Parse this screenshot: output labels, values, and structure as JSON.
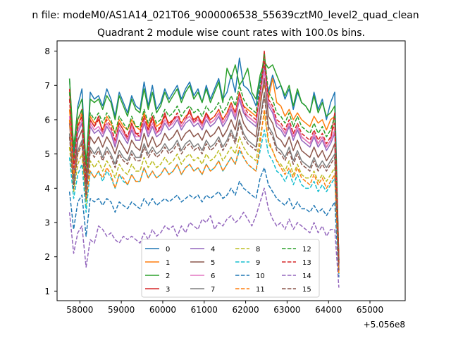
{
  "chart_data": {
    "type": "line",
    "suptitle": "n file: modeM0/AS1A14_021T06_9000006538_55639cztM0_level2_quad_clean",
    "title": "Quadrant 2 module wise count rates with 100.0s bins.",
    "xlabel": "",
    "ylabel": "",
    "x_offset_label": "+5.056e8",
    "xlim": [
      57450,
      65850
    ],
    "ylim": [
      0.72,
      8.3
    ],
    "x_ticks": [
      58000,
      59000,
      60000,
      61000,
      62000,
      63000,
      64000,
      65000
    ],
    "y_ticks": [
      1,
      2,
      3,
      4,
      5,
      6,
      7,
      8
    ],
    "legend_position": "lower-center",
    "legend_columns": 4,
    "x_start": 57750,
    "x_step": 100,
    "series": [
      {
        "name": "0",
        "color": "#1f77b4",
        "dash": "solid",
        "values": [
          7.2,
          5.0,
          6.4,
          6.9,
          4.6,
          6.8,
          6.6,
          6.7,
          6.4,
          6.9,
          6.6,
          6.1,
          6.8,
          6.5,
          6.2,
          6.7,
          6.4,
          6.3,
          7.1,
          6.4,
          7.0,
          6.3,
          6.5,
          6.9,
          6.6,
          6.8,
          7.0,
          6.6,
          6.9,
          7.1,
          6.7,
          6.9,
          6.5,
          7.0,
          6.6,
          6.9,
          7.2,
          6.6,
          6.8,
          7.3,
          6.8,
          7.8,
          7.0,
          6.9,
          6.7,
          6.4,
          7.2,
          7.4,
          6.8,
          7.3,
          6.9,
          7.0,
          6.6,
          6.9,
          6.3,
          6.8,
          6.5,
          6.4,
          6.2,
          6.8,
          6.3,
          6.6,
          6.0,
          6.5,
          6.8,
          1.9
        ]
      },
      {
        "name": "1",
        "color": "#ff7f0e",
        "dash": "solid",
        "values": [
          6.3,
          4.8,
          5.8,
          6.2,
          4.4,
          6.1,
          5.9,
          6.0,
          5.7,
          6.1,
          5.9,
          5.6,
          6.0,
          5.8,
          5.7,
          6.0,
          5.8,
          5.7,
          6.2,
          5.8,
          6.1,
          5.8,
          5.9,
          6.1,
          5.9,
          6.0,
          6.1,
          5.9,
          6.1,
          6.2,
          6.0,
          6.1,
          5.9,
          6.2,
          6.0,
          6.1,
          6.3,
          6.0,
          6.2,
          6.5,
          6.2,
          6.8,
          6.4,
          6.3,
          6.2,
          6.1,
          6.6,
          7.0,
          6.6,
          7.2,
          6.5,
          6.4,
          6.1,
          6.3,
          6.0,
          6.2,
          6.0,
          5.9,
          5.8,
          6.1,
          5.9,
          6.0,
          5.7,
          6.0,
          6.1,
          1.8
        ]
      },
      {
        "name": "2",
        "color": "#2ca02c",
        "dash": "solid",
        "values": [
          7.2,
          5.2,
          6.3,
          6.6,
          4.7,
          6.6,
          6.5,
          6.6,
          6.3,
          6.7,
          6.5,
          6.0,
          6.7,
          6.4,
          6.1,
          6.6,
          6.3,
          6.2,
          6.9,
          6.3,
          6.8,
          6.2,
          6.4,
          6.8,
          6.5,
          6.7,
          6.9,
          6.5,
          6.8,
          7.0,
          6.6,
          6.8,
          6.5,
          6.9,
          6.5,
          6.8,
          7.1,
          6.5,
          7.5,
          7.2,
          7.6,
          7.0,
          7.2,
          7.5,
          6.8,
          6.6,
          7.3,
          7.7,
          7.5,
          7.6,
          7.3,
          7.0,
          6.7,
          7.0,
          6.4,
          6.9,
          6.5,
          6.4,
          6.2,
          6.7,
          6.2,
          6.5,
          6.1,
          6.2,
          6.4,
          1.9
        ]
      },
      {
        "name": "3",
        "color": "#d62728",
        "dash": "solid",
        "values": [
          6.9,
          4.6,
          6.0,
          6.3,
          4.3,
          6.0,
          5.8,
          6.1,
          5.6,
          5.9,
          5.7,
          5.3,
          5.9,
          5.7,
          5.4,
          5.9,
          5.6,
          5.5,
          6.0,
          5.7,
          6.1,
          5.6,
          5.8,
          6.2,
          5.8,
          6.0,
          6.1,
          5.8,
          6.0,
          6.3,
          5.9,
          6.1,
          5.8,
          6.2,
          5.9,
          6.0,
          6.2,
          5.9,
          6.1,
          6.4,
          6.1,
          6.6,
          6.2,
          6.1,
          6.0,
          5.9,
          6.8,
          8.0,
          6.5,
          6.3,
          5.9,
          5.8,
          5.6,
          5.9,
          5.5,
          5.8,
          5.5,
          5.4,
          5.3,
          5.6,
          5.3,
          5.5,
          5.2,
          5.4,
          6.2,
          1.9
        ]
      },
      {
        "name": "4",
        "color": "#9467bd",
        "dash": "solid",
        "values": [
          6.0,
          4.5,
          5.6,
          5.9,
          4.2,
          5.8,
          5.6,
          5.7,
          5.5,
          5.8,
          5.6,
          5.2,
          5.7,
          5.5,
          5.3,
          5.7,
          5.4,
          5.4,
          5.9,
          5.5,
          5.8,
          5.5,
          5.6,
          5.9,
          5.7,
          5.8,
          6.0,
          5.7,
          5.9,
          6.0,
          5.8,
          5.9,
          5.7,
          6.0,
          5.8,
          5.9,
          6.1,
          5.8,
          6.0,
          6.3,
          6.0,
          6.6,
          6.2,
          6.0,
          5.9,
          5.8,
          6.8,
          7.6,
          6.4,
          6.2,
          5.8,
          5.7,
          5.5,
          5.8,
          5.4,
          5.7,
          5.4,
          5.3,
          5.2,
          5.5,
          5.2,
          5.4,
          5.1,
          5.3,
          5.6,
          1.7
        ]
      },
      {
        "name": "5",
        "color": "#8c564b",
        "dash": "solid",
        "values": [
          5.9,
          4.3,
          5.4,
          5.7,
          4.0,
          5.5,
          5.3,
          5.5,
          5.2,
          5.5,
          5.3,
          5.0,
          5.4,
          5.2,
          5.0,
          5.4,
          5.2,
          5.1,
          5.6,
          5.2,
          5.5,
          5.2,
          5.3,
          5.6,
          5.4,
          5.5,
          5.7,
          5.4,
          5.6,
          5.7,
          5.5,
          5.6,
          5.4,
          5.7,
          5.5,
          5.6,
          5.8,
          5.5,
          5.7,
          6.0,
          5.7,
          6.3,
          5.9,
          5.7,
          5.6,
          5.5,
          6.4,
          7.2,
          6.1,
          5.9,
          5.5,
          5.4,
          5.2,
          5.5,
          5.1,
          5.4,
          5.1,
          5.0,
          4.9,
          5.2,
          4.9,
          5.1,
          4.8,
          5.0,
          5.3,
          1.6
        ]
      },
      {
        "name": "6",
        "color": "#e377c2",
        "dash": "solid",
        "values": [
          6.1,
          4.6,
          5.7,
          6.0,
          4.3,
          5.9,
          5.7,
          5.8,
          5.6,
          5.9,
          5.7,
          5.3,
          5.8,
          5.6,
          5.4,
          5.8,
          5.5,
          5.5,
          6.0,
          5.6,
          5.9,
          5.6,
          5.7,
          6.0,
          5.8,
          5.9,
          6.1,
          5.8,
          6.0,
          6.1,
          5.9,
          6.0,
          5.8,
          6.1,
          5.9,
          6.0,
          6.2,
          5.9,
          6.1,
          6.4,
          6.1,
          6.7,
          6.3,
          6.1,
          6.0,
          5.9,
          6.7,
          7.4,
          6.5,
          6.3,
          5.9,
          5.8,
          5.6,
          5.9,
          5.5,
          5.8,
          5.5,
          5.4,
          5.3,
          5.6,
          5.3,
          5.5,
          5.2,
          5.4,
          5.7,
          1.7
        ]
      },
      {
        "name": "7",
        "color": "#7f7f7f",
        "dash": "solid",
        "values": [
          5.6,
          4.1,
          5.1,
          5.4,
          3.8,
          5.2,
          5.0,
          5.2,
          4.9,
          5.2,
          5.0,
          4.7,
          5.1,
          4.9,
          4.8,
          5.1,
          4.9,
          4.9,
          5.3,
          5.0,
          5.2,
          5.0,
          5.1,
          5.3,
          5.1,
          5.2,
          5.4,
          5.1,
          5.3,
          5.4,
          5.2,
          5.3,
          5.1,
          5.4,
          5.2,
          5.3,
          5.5,
          5.2,
          5.4,
          5.7,
          5.4,
          6.0,
          5.6,
          5.4,
          5.3,
          5.2,
          6.0,
          6.8,
          5.8,
          5.6,
          5.2,
          5.1,
          4.9,
          5.2,
          4.8,
          5.1,
          4.8,
          4.7,
          4.6,
          4.9,
          4.6,
          4.8,
          4.6,
          4.8,
          5.0,
          1.6
        ]
      },
      {
        "name": "8",
        "color": "#bcbd22",
        "dash": "dashed",
        "values": [
          5.2,
          3.9,
          4.7,
          5.0,
          3.5,
          4.8,
          4.6,
          4.8,
          4.5,
          4.8,
          4.6,
          4.3,
          4.7,
          4.5,
          4.4,
          4.7,
          4.5,
          4.5,
          4.9,
          4.6,
          4.8,
          4.6,
          4.7,
          4.9,
          4.7,
          4.8,
          5.0,
          4.7,
          4.9,
          5.0,
          4.8,
          4.9,
          4.7,
          5.0,
          4.8,
          4.9,
          5.1,
          4.8,
          5.0,
          5.2,
          5.0,
          5.5,
          5.2,
          5.0,
          4.9,
          4.8,
          5.5,
          6.2,
          5.3,
          5.1,
          4.8,
          4.7,
          4.5,
          4.8,
          4.4,
          4.7,
          4.4,
          4.3,
          4.3,
          4.5,
          4.2,
          4.4,
          4.2,
          4.4,
          4.6,
          1.5
        ]
      },
      {
        "name": "9",
        "color": "#17becf",
        "dash": "dashed",
        "values": [
          4.9,
          3.7,
          4.4,
          4.7,
          3.3,
          4.5,
          4.3,
          4.5,
          4.2,
          4.5,
          4.3,
          4.0,
          4.4,
          4.2,
          4.1,
          4.4,
          4.2,
          4.2,
          4.6,
          4.3,
          4.5,
          4.3,
          4.4,
          4.6,
          4.4,
          4.5,
          4.7,
          4.4,
          4.6,
          4.7,
          4.5,
          4.6,
          4.4,
          4.7,
          4.5,
          4.6,
          4.8,
          4.5,
          4.7,
          4.9,
          4.7,
          5.1,
          4.9,
          4.7,
          4.6,
          4.5,
          5.1,
          5.7,
          5.0,
          4.8,
          4.5,
          4.4,
          4.2,
          4.5,
          4.1,
          4.4,
          4.1,
          4.0,
          4.0,
          4.2,
          3.9,
          4.1,
          3.9,
          4.1,
          4.3,
          1.5
        ]
      },
      {
        "name": "10",
        "color": "#1f77b4",
        "dash": "dashed",
        "values": [
          3.9,
          2.8,
          3.6,
          3.8,
          2.6,
          3.7,
          3.6,
          3.7,
          3.5,
          3.7,
          3.6,
          3.3,
          3.6,
          3.5,
          3.4,
          3.6,
          3.5,
          3.4,
          3.7,
          3.5,
          3.7,
          3.5,
          3.6,
          3.7,
          3.6,
          3.7,
          3.8,
          3.6,
          3.7,
          3.8,
          3.7,
          3.8,
          3.6,
          3.8,
          3.7,
          3.8,
          3.9,
          3.7,
          3.8,
          4.0,
          3.8,
          4.2,
          4.0,
          3.9,
          3.8,
          3.7,
          4.3,
          4.6,
          4.1,
          3.9,
          3.7,
          3.6,
          3.5,
          3.7,
          3.4,
          3.6,
          3.4,
          3.4,
          3.3,
          3.5,
          3.3,
          3.4,
          3.2,
          3.4,
          3.6,
          1.4
        ]
      },
      {
        "name": "11",
        "color": "#ff7f0e",
        "dash": "dashed",
        "values": [
          6.0,
          4.4,
          5.0,
          5.3,
          3.7,
          4.5,
          4.3,
          4.5,
          4.3,
          4.6,
          4.4,
          4.0,
          4.4,
          4.3,
          4.1,
          4.4,
          4.2,
          4.2,
          4.6,
          4.3,
          4.5,
          4.3,
          4.4,
          4.6,
          4.4,
          4.5,
          4.7,
          4.4,
          4.6,
          4.7,
          4.5,
          4.6,
          4.4,
          4.7,
          4.5,
          4.6,
          4.8,
          4.5,
          4.7,
          4.9,
          4.7,
          5.2,
          4.9,
          4.7,
          4.6,
          4.5,
          5.3,
          6.3,
          5.4,
          5.1,
          4.8,
          4.6,
          4.4,
          4.6,
          4.3,
          4.6,
          4.3,
          4.2,
          4.1,
          4.4,
          4.1,
          4.3,
          4.0,
          4.2,
          4.4,
          1.5
        ]
      },
      {
        "name": "12",
        "color": "#2ca02c",
        "dash": "dashed",
        "values": [
          6.8,
          4.8,
          6.0,
          6.3,
          4.4,
          6.2,
          6.0,
          6.2,
          5.9,
          6.2,
          6.0,
          5.6,
          6.1,
          5.9,
          5.7,
          6.1,
          5.8,
          5.8,
          6.3,
          5.9,
          6.2,
          5.9,
          6.0,
          6.3,
          6.1,
          6.2,
          6.4,
          6.1,
          6.3,
          6.4,
          6.2,
          6.3,
          6.1,
          6.4,
          6.2,
          6.3,
          6.5,
          6.2,
          6.4,
          6.7,
          6.4,
          7.0,
          6.6,
          6.4,
          6.3,
          6.2,
          7.0,
          7.9,
          6.8,
          6.6,
          6.2,
          6.1,
          5.9,
          6.2,
          5.8,
          6.1,
          5.8,
          5.7,
          5.6,
          5.9,
          5.6,
          5.8,
          5.5,
          5.7,
          6.1,
          1.8
        ]
      },
      {
        "name": "13",
        "color": "#d62728",
        "dash": "dashed",
        "values": [
          6.6,
          4.6,
          5.8,
          6.1,
          4.2,
          6.0,
          5.8,
          6.0,
          5.7,
          6.0,
          5.8,
          5.4,
          5.9,
          5.7,
          5.5,
          5.9,
          5.6,
          5.6,
          6.1,
          5.7,
          6.0,
          5.7,
          5.8,
          6.1,
          5.9,
          6.0,
          6.2,
          5.9,
          6.1,
          6.2,
          6.0,
          6.1,
          5.9,
          6.2,
          6.0,
          6.1,
          6.3,
          6.0,
          6.2,
          6.5,
          6.2,
          6.8,
          6.4,
          6.2,
          6.1,
          6.0,
          6.8,
          7.7,
          6.6,
          6.4,
          6.0,
          5.9,
          5.7,
          6.0,
          5.6,
          5.9,
          5.6,
          5.5,
          5.4,
          5.7,
          5.4,
          5.6,
          5.3,
          5.5,
          5.9,
          1.8
        ]
      },
      {
        "name": "14",
        "color": "#9467bd",
        "dash": "dashed",
        "values": [
          3.3,
          2.1,
          2.7,
          2.9,
          1.7,
          2.5,
          2.4,
          2.9,
          2.8,
          2.6,
          2.7,
          2.5,
          2.4,
          2.6,
          2.5,
          2.6,
          2.5,
          2.4,
          2.7,
          2.5,
          2.8,
          2.6,
          2.7,
          2.9,
          2.8,
          2.9,
          2.6,
          2.9,
          2.7,
          3.0,
          2.9,
          2.8,
          3.1,
          3.0,
          3.2,
          2.8,
          3.0,
          2.9,
          3.1,
          3.2,
          3.0,
          3.1,
          3.3,
          3.1,
          2.9,
          3.2,
          3.6,
          4.0,
          3.4,
          3.1,
          2.9,
          3.0,
          2.8,
          3.1,
          2.8,
          3.0,
          2.9,
          2.8,
          2.7,
          3.0,
          2.7,
          2.9,
          2.6,
          2.8,
          2.8,
          1.1
        ]
      },
      {
        "name": "15",
        "color": "#8c564b",
        "dash": "dashed",
        "values": [
          5.5,
          4.0,
          5.0,
          5.3,
          3.7,
          5.1,
          4.9,
          5.1,
          4.8,
          5.1,
          4.9,
          4.6,
          5.0,
          4.8,
          4.7,
          5.0,
          4.8,
          4.8,
          5.2,
          4.9,
          5.1,
          4.9,
          5.0,
          5.2,
          5.0,
          5.1,
          5.3,
          5.0,
          5.2,
          5.3,
          5.1,
          5.2,
          5.0,
          5.3,
          5.1,
          5.2,
          5.4,
          5.1,
          5.3,
          5.6,
          5.3,
          5.9,
          5.5,
          5.3,
          5.2,
          5.1,
          5.9,
          6.7,
          5.7,
          5.5,
          5.1,
          5.0,
          4.8,
          5.1,
          4.7,
          5.0,
          4.7,
          4.6,
          4.5,
          4.8,
          4.5,
          4.7,
          4.5,
          4.7,
          4.9,
          1.6
        ]
      }
    ]
  }
}
